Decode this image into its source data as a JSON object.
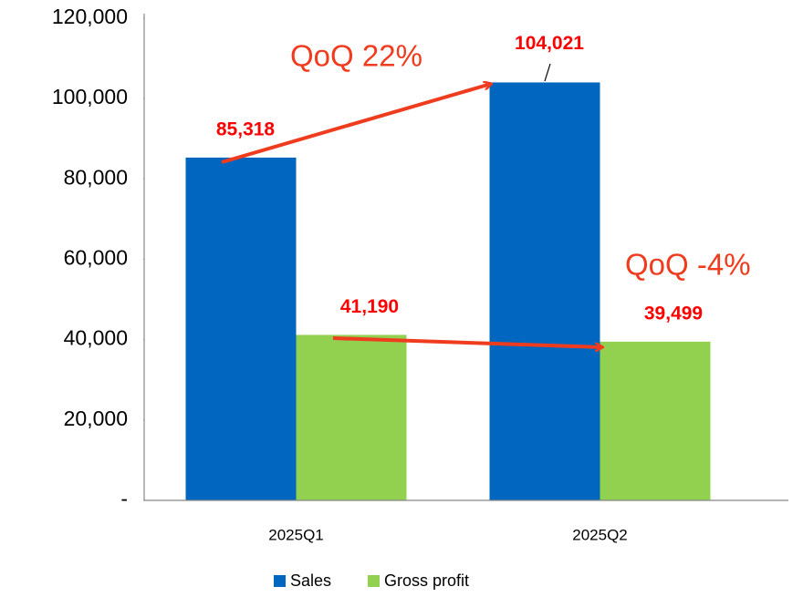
{
  "chart_data": {
    "type": "bar",
    "categories": [
      "2025Q1",
      "2025Q2"
    ],
    "series": [
      {
        "name": "Sales",
        "color": "#0066c0",
        "values": [
          85318,
          104021
        ],
        "value_labels": [
          "85,318",
          "104,021"
        ]
      },
      {
        "name": "Gross profit",
        "color": "#92d050",
        "values": [
          41190,
          39499
        ],
        "value_labels": [
          "41,190",
          "39,499"
        ]
      }
    ],
    "ylim": [
      0,
      120000
    ],
    "yticks": [
      {
        "value": 0,
        "label": "-"
      },
      {
        "value": 20000,
        "label": "20,000"
      },
      {
        "value": 40000,
        "label": "40,000"
      },
      {
        "value": 60000,
        "label": "60,000"
      },
      {
        "value": 80000,
        "label": "80,000"
      },
      {
        "value": 100000,
        "label": "100,000"
      },
      {
        "value": 120000,
        "label": "120,000"
      }
    ],
    "grid": false,
    "legend": "bottom",
    "annotations": [
      "QoQ 22%",
      "QoQ -4%"
    ]
  }
}
